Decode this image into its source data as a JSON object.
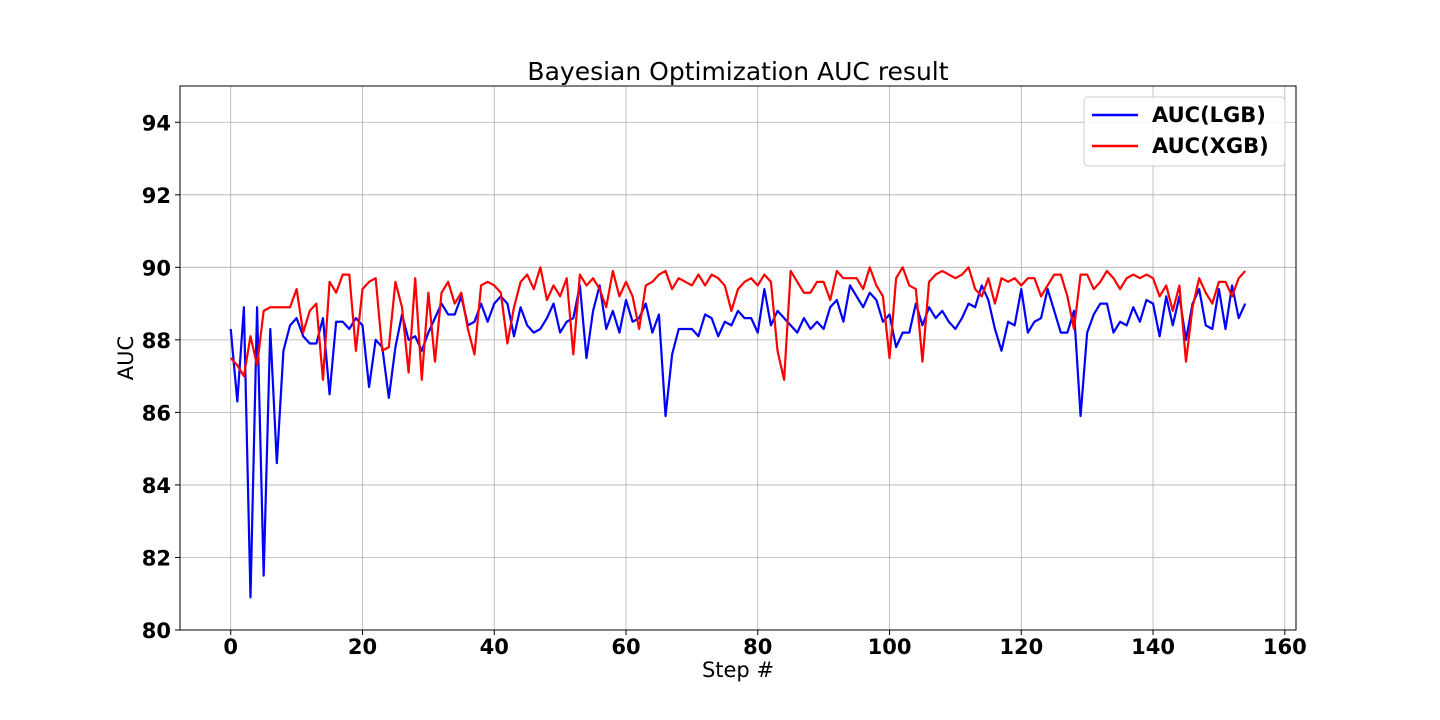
{
  "chart_data": {
    "type": "line",
    "title": "Bayesian Optimization AUC result",
    "xlabel": "Step #",
    "ylabel": "AUC",
    "xlim": [
      -7.7,
      161.7
    ],
    "ylim": [
      80,
      95
    ],
    "xticks": [
      0,
      20,
      40,
      60,
      80,
      100,
      120,
      140,
      160
    ],
    "yticks": [
      80,
      82,
      84,
      86,
      88,
      90,
      92,
      94
    ],
    "grid": true,
    "legend_position": "top-right",
    "series": [
      {
        "name": "AUC(LGB)",
        "color": "#0000ff",
        "values": [
          88.3,
          86.3,
          88.9,
          80.9,
          88.9,
          81.5,
          88.3,
          84.6,
          87.7,
          88.4,
          88.6,
          88.1,
          87.9,
          87.9,
          88.6,
          86.5,
          88.5,
          88.5,
          88.3,
          88.6,
          88.4,
          86.7,
          88.0,
          87.8,
          86.4,
          87.8,
          88.7,
          88.0,
          88.1,
          87.7,
          88.2,
          88.6,
          89.0,
          88.7,
          88.7,
          89.2,
          88.4,
          88.5,
          89.0,
          88.5,
          89.0,
          89.2,
          89.0,
          88.1,
          88.9,
          88.4,
          88.2,
          88.3,
          88.6,
          89.0,
          88.2,
          88.5,
          88.6,
          89.5,
          87.5,
          88.8,
          89.5,
          88.3,
          88.8,
          88.2,
          89.1,
          88.5,
          88.6,
          89.0,
          88.2,
          88.7,
          85.9,
          87.6,
          88.3,
          88.3,
          88.3,
          88.1,
          88.7,
          88.6,
          88.1,
          88.5,
          88.4,
          88.8,
          88.6,
          88.6,
          88.2,
          89.4,
          88.4,
          88.8,
          88.6,
          88.4,
          88.2,
          88.6,
          88.3,
          88.5,
          88.3,
          88.9,
          89.1,
          88.5,
          89.5,
          89.2,
          88.9,
          89.3,
          89.1,
          88.5,
          88.7,
          87.8,
          88.2,
          88.2,
          89.0,
          88.4,
          88.9,
          88.6,
          88.8,
          88.5,
          88.3,
          88.6,
          89.0,
          88.9,
          89.5,
          89.1,
          88.3,
          87.7,
          88.5,
          88.4,
          89.4,
          88.2,
          88.5,
          88.6,
          89.4,
          88.8,
          88.2,
          88.2,
          88.8,
          85.9,
          88.2,
          88.7,
          89.0,
          89.0,
          88.2,
          88.5,
          88.4,
          88.9,
          88.5,
          89.1,
          89.0,
          88.1,
          89.2,
          88.4,
          89.2,
          88.0,
          89.0,
          89.4,
          88.4,
          88.3,
          89.4,
          88.3,
          89.5,
          88.6,
          89.0
        ]
      },
      {
        "name": "AUC(XGB)",
        "color": "#ff0000",
        "values": [
          87.5,
          87.3,
          87.0,
          88.1,
          87.3,
          88.8,
          88.9,
          88.9,
          88.9,
          88.9,
          89.4,
          88.2,
          88.8,
          89.0,
          86.9,
          89.6,
          89.3,
          89.8,
          89.8,
          87.7,
          89.4,
          89.6,
          89.7,
          87.7,
          87.8,
          89.6,
          88.9,
          87.1,
          89.7,
          86.9,
          89.3,
          87.4,
          89.3,
          89.6,
          89.0,
          89.3,
          88.3,
          87.6,
          89.5,
          89.6,
          89.5,
          89.3,
          87.9,
          88.9,
          89.6,
          89.8,
          89.4,
          90.0,
          89.1,
          89.5,
          89.2,
          89.7,
          87.6,
          89.8,
          89.5,
          89.7,
          89.4,
          88.9,
          89.9,
          89.2,
          89.6,
          89.2,
          88.3,
          89.5,
          89.6,
          89.8,
          89.9,
          89.4,
          89.7,
          89.6,
          89.5,
          89.8,
          89.5,
          89.8,
          89.7,
          89.5,
          88.8,
          89.4,
          89.6,
          89.7,
          89.5,
          89.8,
          89.6,
          87.7,
          86.9,
          89.9,
          89.6,
          89.3,
          89.3,
          89.6,
          89.6,
          89.1,
          89.9,
          89.7,
          89.7,
          89.7,
          89.4,
          90.0,
          89.5,
          89.2,
          87.5,
          89.7,
          90.0,
          89.5,
          89.4,
          87.4,
          89.6,
          89.8,
          89.9,
          89.8,
          89.7,
          89.8,
          90.0,
          89.4,
          89.2,
          89.7,
          89.0,
          89.7,
          89.6,
          89.7,
          89.5,
          89.7,
          89.7,
          89.2,
          89.5,
          89.8,
          89.8,
          89.2,
          88.3,
          89.8,
          89.8,
          89.4,
          89.6,
          89.9,
          89.7,
          89.4,
          89.7,
          89.8,
          89.7,
          89.8,
          89.7,
          89.2,
          89.5,
          88.8,
          89.5,
          87.4,
          88.9,
          89.7,
          89.3,
          89.0,
          89.6,
          89.6,
          89.2,
          89.7,
          89.9
        ]
      }
    ]
  }
}
